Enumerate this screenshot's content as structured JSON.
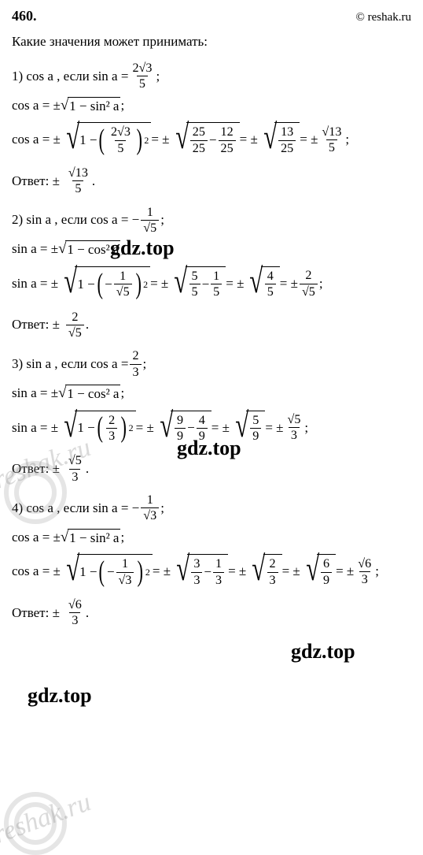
{
  "header": {
    "problem_number": "460.",
    "site": "© reshak.ru"
  },
  "prompt": "Какие значения может принимать:",
  "parts": {
    "p1": {
      "label": "1) cos a , если sin a =",
      "given_num": "2√3",
      "given_den": "5",
      "identity": "cos a = ±",
      "identity_rad": "1 − sin² a",
      "calc_prefix": "cos a = ±",
      "inner_num": "2√3",
      "inner_den": "5",
      "step2_a_num": "25",
      "step2_a_den": "25",
      "step2_b_num": "12",
      "step2_b_den": "25",
      "step3_num": "13",
      "step3_den": "25",
      "result_num": "√13",
      "result_den": "5",
      "answer_label": "Ответ:  ±",
      "answer_num": "√13",
      "answer_den": "5"
    },
    "p2": {
      "label": "2) sin a , если cos a = −",
      "given_num": "1",
      "given_den": "√5",
      "identity": "sin a = ±",
      "identity_rad": "1 − cos² a",
      "calc_prefix": "sin a = ±",
      "inner_prefix": "−",
      "inner_num": "1",
      "inner_den": "√5",
      "step2_a_num": "5",
      "step2_a_den": "5",
      "step2_b_num": "1",
      "step2_b_den": "5",
      "step3_num": "4",
      "step3_den": "5",
      "result_num": "2",
      "result_den": "√5",
      "answer_label": "Ответ:  ±",
      "answer_num": "2",
      "answer_den": "√5"
    },
    "p3": {
      "label": "3) sin a , если cos a =",
      "given_num": "2",
      "given_den": "3",
      "identity": "sin a = ±",
      "identity_rad": "1 − cos² a",
      "calc_prefix": "sin a = ±",
      "inner_num": "2",
      "inner_den": "3",
      "step2_a_num": "9",
      "step2_a_den": "9",
      "step2_b_num": "4",
      "step2_b_den": "9",
      "step3_num": "5",
      "step3_den": "9",
      "result_num": "√5",
      "result_den": "3",
      "answer_label": "Ответ:  ±",
      "answer_num": "√5",
      "answer_den": "3"
    },
    "p4": {
      "label": "4) cos a , если sin a = −",
      "given_num": "1",
      "given_den": "√3",
      "identity": "cos a = ±",
      "identity_rad": "1 − sin² a",
      "calc_prefix": "cos a = ±",
      "inner_prefix": "−",
      "inner_num": "1",
      "inner_den": "√3",
      "step2_a_num": "3",
      "step2_a_den": "3",
      "step2_b_num": "1",
      "step2_b_den": "3",
      "step3_num": "2",
      "step3_den": "3",
      "step4_num": "6",
      "step4_den": "9",
      "result_num": "√6",
      "result_den": "3",
      "answer_label": "Ответ:  ±",
      "answer_num": "√6",
      "answer_den": "3"
    }
  },
  "watermarks": {
    "gdz": "gdz.top",
    "reshak": "reshak.ru"
  },
  "colors": {
    "text": "#000000",
    "bg": "#ffffff",
    "watermark": "rgba(150,150,150,0.35)"
  }
}
